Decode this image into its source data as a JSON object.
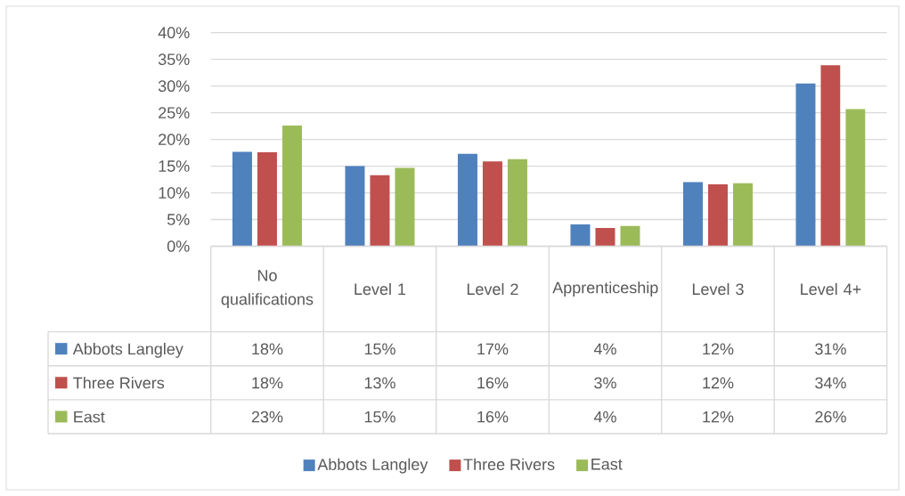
{
  "chart_data": {
    "type": "bar",
    "categories": [
      "No qualifications",
      "Level 1",
      "Level 2",
      "Apprenticeship",
      "Level 3",
      "Level 4+"
    ],
    "series": [
      {
        "name": "Abbots Langley",
        "color": "#4f81bd",
        "values": [
          17.7,
          15.0,
          17.3,
          4.1,
          12.0,
          30.5
        ],
        "value_labels": [
          "18%",
          "15%",
          "17%",
          "4%",
          "12%",
          "31%"
        ]
      },
      {
        "name": "Three Rivers",
        "color": "#c0504d",
        "values": [
          17.6,
          13.3,
          15.9,
          3.4,
          11.6,
          33.9
        ],
        "value_labels": [
          "18%",
          "13%",
          "16%",
          "3%",
          "12%",
          "34%"
        ]
      },
      {
        "name": "East",
        "color": "#9bbb59",
        "values": [
          22.6,
          14.7,
          16.3,
          3.8,
          11.8,
          25.7
        ],
        "value_labels": [
          "23%",
          "15%",
          "16%",
          "4%",
          "12%",
          "26%"
        ]
      }
    ],
    "ylim": [
      0,
      40
    ],
    "yticks": [
      {
        "value": 0,
        "label": "0%"
      },
      {
        "value": 5,
        "label": "5%"
      },
      {
        "value": 10,
        "label": "10%"
      },
      {
        "value": 15,
        "label": "15%"
      },
      {
        "value": 20,
        "label": "20%"
      },
      {
        "value": 25,
        "label": "25%"
      },
      {
        "value": 30,
        "label": "30%"
      },
      {
        "value": 35,
        "label": "35%"
      },
      {
        "value": 40,
        "label": "40%"
      }
    ],
    "grid": "y",
    "legend": "bottom"
  }
}
